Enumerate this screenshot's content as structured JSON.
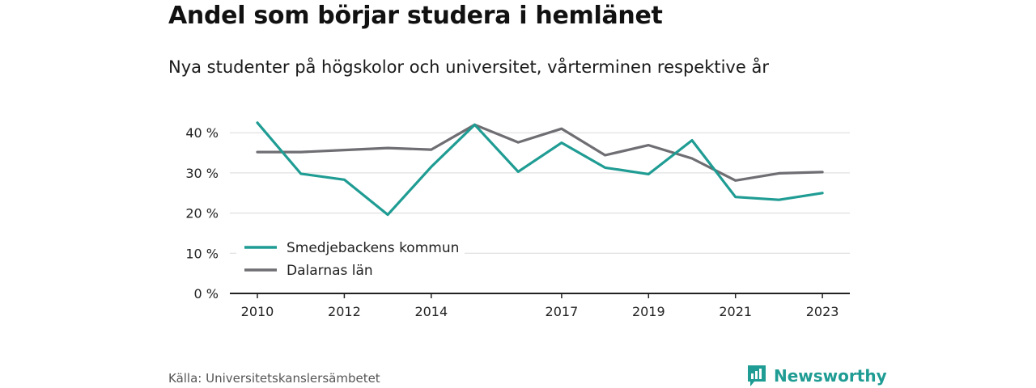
{
  "header": {
    "title": "Andel som börjar studera i hemlänet",
    "subtitle": "Nya studenter på högskolor och universitet, vårterminen respektive år"
  },
  "footer": {
    "source": "Källa: Universitetskanslersämbetet",
    "brand": "Newsworthy"
  },
  "colors": {
    "series_teal": "#1f9c93",
    "series_gray": "#6e6e73",
    "grid": "#d9d9d9",
    "axis": "#222222"
  },
  "chart_data": {
    "type": "line",
    "title": "Andel som börjar studera i hemlänet",
    "subtitle": "Nya studenter på högskolor och universitet, vårterminen respektive år",
    "x": [
      2010,
      2011,
      2012,
      2013,
      2014,
      2015,
      2016,
      2017,
      2018,
      2019,
      2020,
      2021,
      2022,
      2023
    ],
    "x_ticks": [
      2010,
      2012,
      2014,
      2017,
      2019,
      2021,
      2023
    ],
    "y_ticks": [
      0,
      10,
      20,
      30,
      40
    ],
    "y_tick_labels": [
      "0 %",
      "10 %",
      "20 %",
      "30 %",
      "40 %"
    ],
    "ylim": [
      0,
      42
    ],
    "grid": true,
    "legend_position": "bottom-left",
    "series": [
      {
        "name": "Smedjebackens kommun",
        "color": "#1f9c93",
        "values": [
          42.5,
          29.8,
          28.3,
          19.6,
          31.5,
          42.0,
          30.3,
          37.5,
          31.3,
          29.7,
          38.1,
          24.0,
          23.3,
          25.0
        ]
      },
      {
        "name": "Dalarnas län",
        "color": "#6e6e73",
        "values": [
          35.2,
          35.2,
          35.7,
          36.2,
          35.8,
          42.0,
          37.6,
          41.0,
          34.4,
          36.9,
          33.6,
          28.1,
          29.9,
          30.2
        ]
      }
    ]
  }
}
